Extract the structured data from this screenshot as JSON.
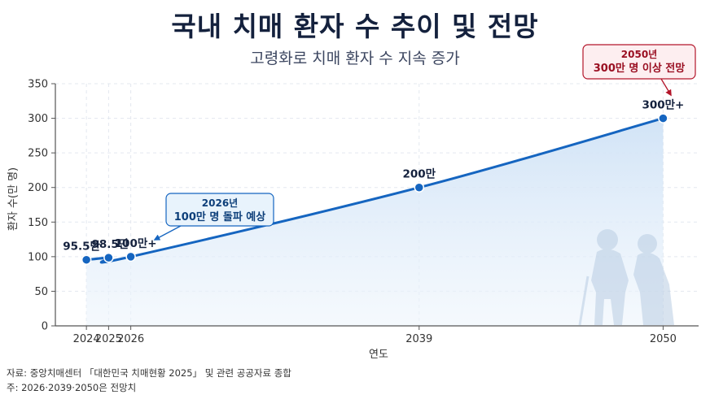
{
  "title": "국내 치매 환자 수 추이 및 전망",
  "subtitle": "고령화로 치매 환자 수 지속 증가",
  "source_lines": [
    "자료: 중앙치매센터 「대한민국 치매현황 2025」 및 관련 공공자료 종합",
    "주: 2026·2039·2050은 전망치"
  ],
  "colors": {
    "line": "#1565c0",
    "area": "#dbe9f8",
    "title": "#14213d",
    "callout_blue": "#1565c0",
    "callout_red": "#b3152a"
  },
  "chart_data": {
    "type": "line",
    "title": "국내 치매 환자 수 추이 및 전망",
    "xlabel": "연도",
    "ylabel": "환자 수(만 명)",
    "xlim": [
      2022.6,
      2051.6
    ],
    "ylim": [
      0,
      350
    ],
    "yticks": [
      0,
      50,
      100,
      150,
      200,
      250,
      300,
      350
    ],
    "xticks": [
      2024,
      2025,
      2026,
      2039,
      2050
    ],
    "grid": true,
    "points": [
      {
        "x": 2024,
        "y": 95.5,
        "label": "95.5만"
      },
      {
        "x": 2025,
        "y": 98.5,
        "label": "98.5만"
      },
      {
        "x": 2026,
        "y": 100,
        "label": "100만+"
      },
      {
        "x": 2039,
        "y": 200,
        "label": "200만"
      },
      {
        "x": 2050,
        "y": 300,
        "label": "300만+"
      }
    ],
    "annotations": [
      {
        "x": 2026,
        "y": 100,
        "lines": [
          "2026년",
          "100만 명 돌파 예상"
        ],
        "style": "blue"
      },
      {
        "x": 2050,
        "y": 300,
        "lines": [
          "2050년",
          "300만 명 이상 전망"
        ],
        "style": "red"
      }
    ]
  }
}
